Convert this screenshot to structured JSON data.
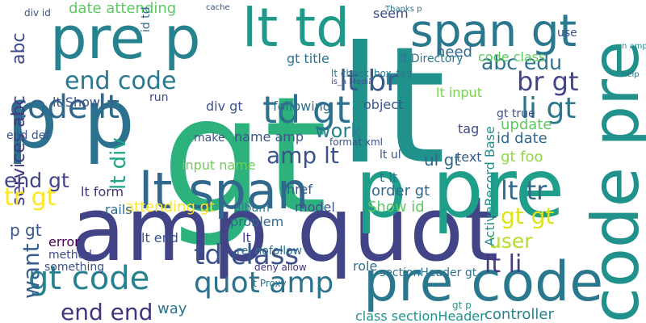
{
  "words": [
    "gt",
    "lt",
    "amp quot",
    "pre code",
    "p p",
    "pre p",
    "p pre",
    "code pre",
    "lt td",
    "span gt",
    "lt span",
    "td gt",
    "lt br",
    "end code",
    "code lt",
    "gt code",
    "quot amp",
    "td class",
    "end end",
    "abc edu",
    "br gt",
    "li gt",
    "lt tr",
    "lt li",
    "gt gt",
    "user",
    "work",
    "amp lt",
    "gt foo",
    "id date",
    "update",
    "services abc",
    "abc",
    "tr gt",
    "end gt",
    "want",
    "p gt",
    "lt div",
    "date attending",
    "gt title",
    "need",
    "lt input",
    "gt true",
    "tag",
    "text",
    "ul gt",
    "t lt",
    "order gt",
    "Show id",
    "model",
    "problem",
    "attending gt",
    "name amp",
    "input name",
    "lt form",
    "rails",
    "album",
    "href",
    "lt p",
    "lt end",
    "error",
    "method",
    "something",
    "way",
    "controller",
    "class sectionHeader",
    "sectionHeader gt",
    "role",
    "deny allow",
    "lt Proxy",
    "rel nofollow",
    "following",
    "object",
    "div gt",
    "lt Show",
    "run",
    "make",
    "lt check_box_tag",
    "is_a Media",
    "ActiveRecord Base",
    "code class",
    "lt ul",
    "seem",
    "use",
    "help",
    "n amp",
    "end def",
    "div id",
    "cache",
    "format xml",
    "lt Directory",
    "Thanks p",
    "id td",
    "gt p"
  ]
}
